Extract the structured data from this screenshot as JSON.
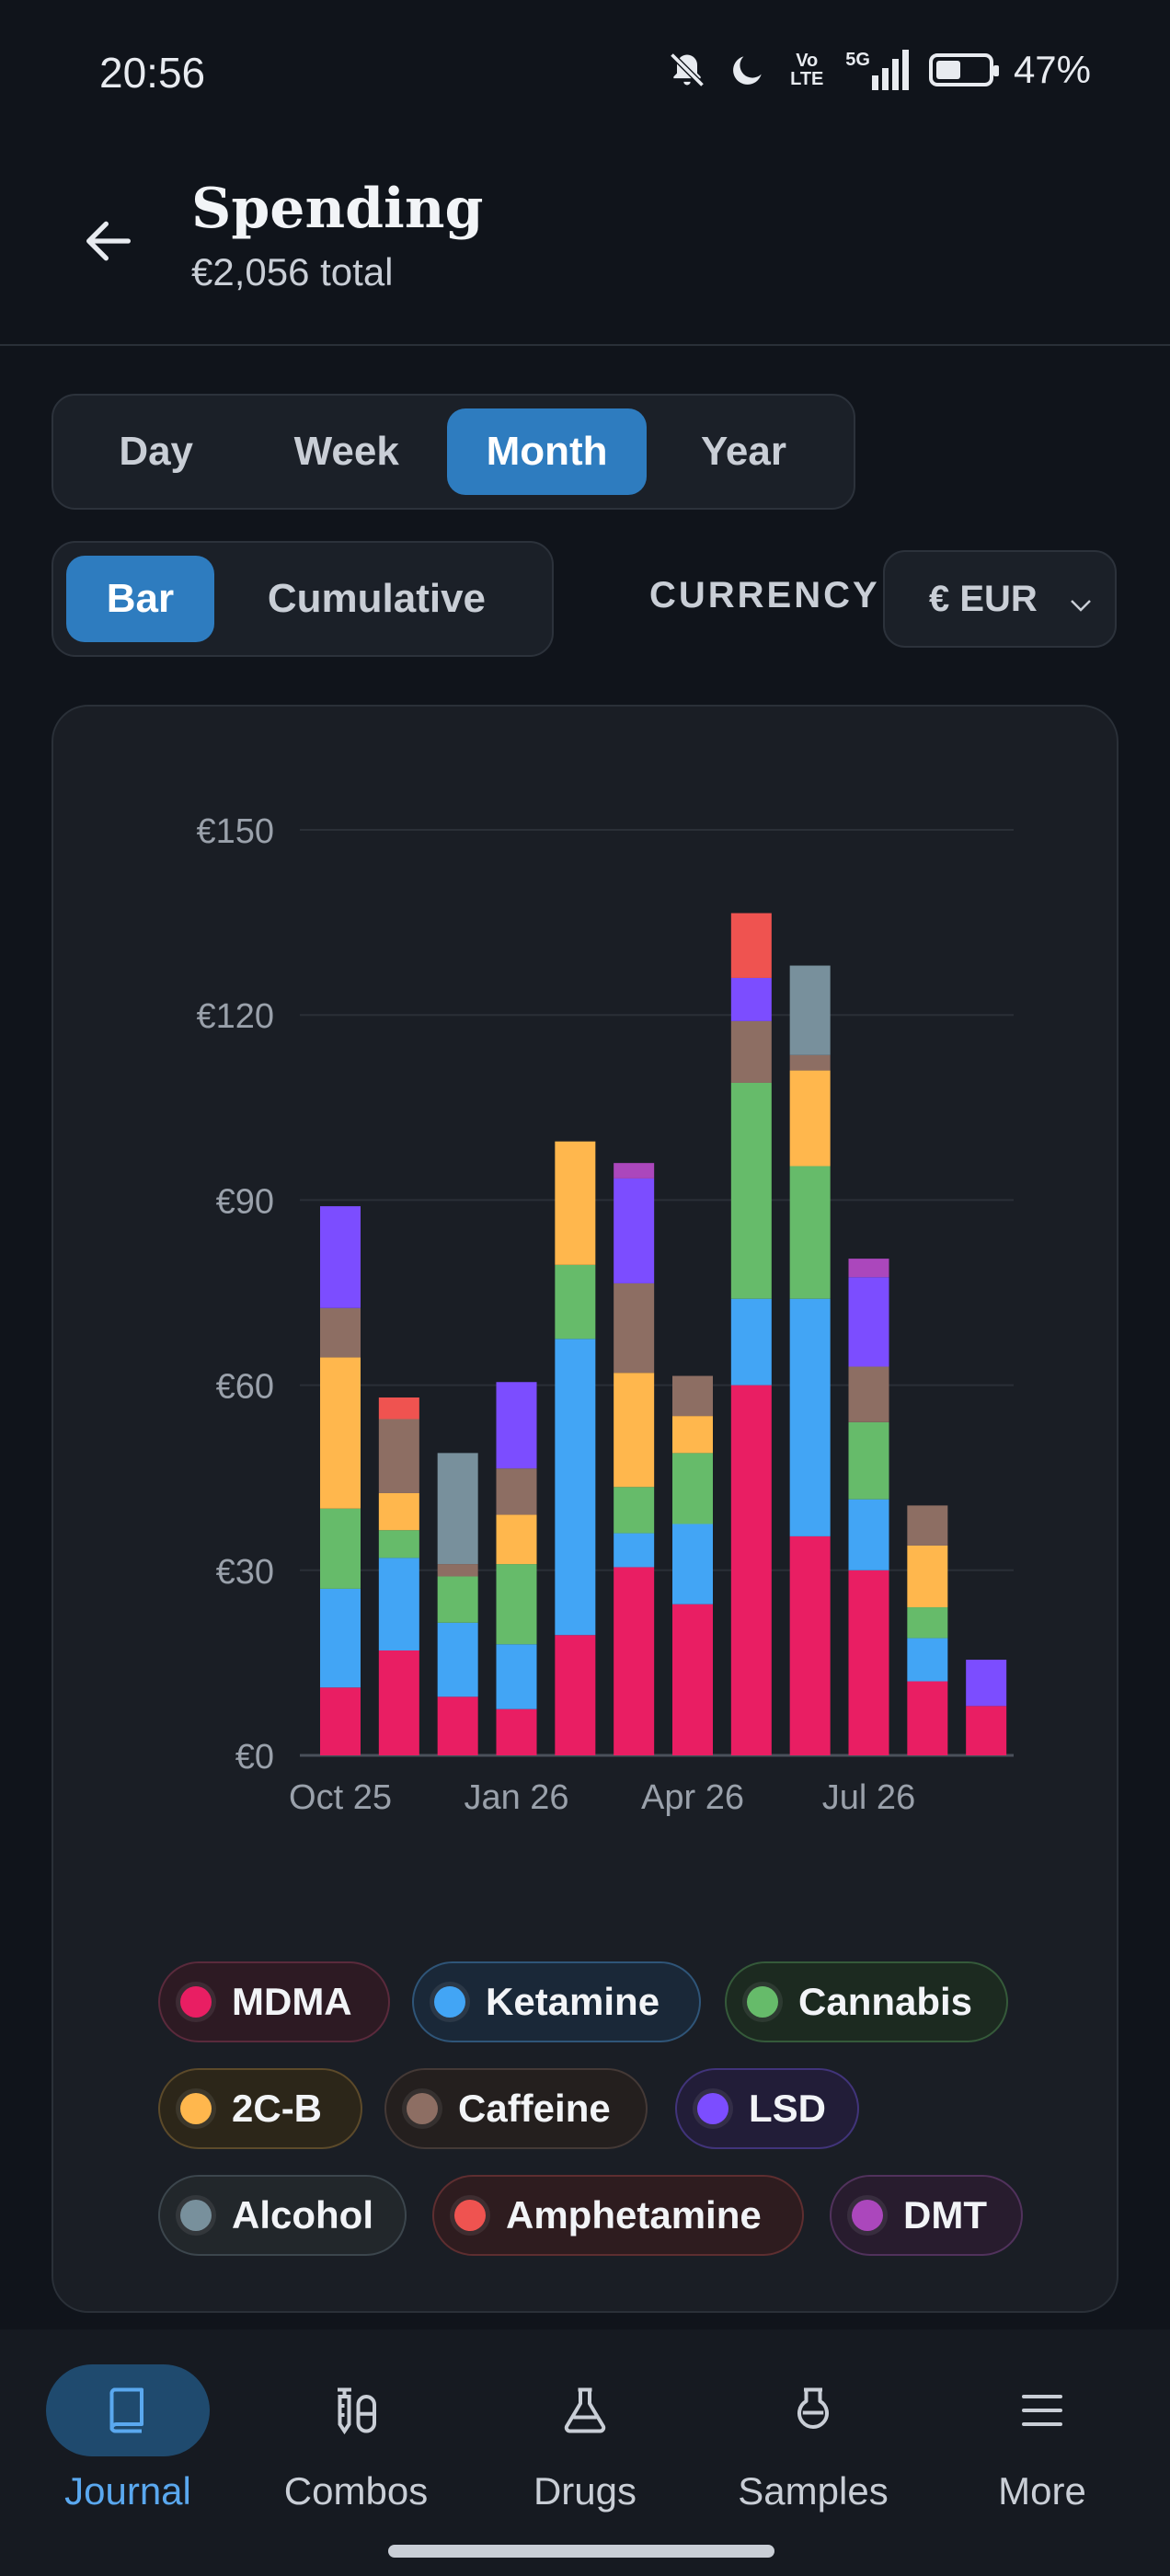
{
  "status_bar": {
    "time": "20:56",
    "volte": "Vo LTE",
    "network": "5G",
    "battery": "47%"
  },
  "header": {
    "title": "Spending",
    "subtitle": "€2,056 total"
  },
  "range_tabs": [
    {
      "label": "Day",
      "active": false
    },
    {
      "label": "Week",
      "active": false
    },
    {
      "label": "Month",
      "active": true
    },
    {
      "label": "Year",
      "active": false
    }
  ],
  "mode_tabs": [
    {
      "label": "Bar",
      "active": true
    },
    {
      "label": "Cumulative",
      "active": false
    }
  ],
  "currency": {
    "label": "CURRENCY",
    "selected": "€ EUR"
  },
  "chart_data": {
    "type": "bar",
    "stacked": true,
    "categories": [
      "Oct 25",
      "Nov 25",
      "Dec 25",
      "Jan 26",
      "Feb 26",
      "Mar 26",
      "Apr 26",
      "May 26",
      "Jun 26",
      "Jul 26",
      "Aug 26",
      "Sep 26"
    ],
    "x_tick_labels": [
      "Oct 25",
      "Jan 26",
      "Apr 26",
      "Jul 26"
    ],
    "y_tick_labels": [
      "€0",
      "€30",
      "€60",
      "€90",
      "€120",
      "€150"
    ],
    "ylim": [
      0,
      150
    ],
    "grid": true,
    "series": [
      {
        "name": "MDMA",
        "color": "#e91e63",
        "values": [
          11,
          17,
          9.5,
          7.5,
          19.5,
          30.5,
          24.5,
          60,
          35.5,
          30,
          12,
          8
        ]
      },
      {
        "name": "Ketamine",
        "color": "#42a5f5",
        "values": [
          16,
          15,
          12,
          10.5,
          48,
          5.5,
          13,
          14,
          38.5,
          11.5,
          7,
          0
        ]
      },
      {
        "name": "Cannabis",
        "color": "#66bb6a",
        "values": [
          13,
          4.5,
          7.5,
          13,
          12,
          7.5,
          11.5,
          35,
          21.5,
          12.5,
          5,
          0
        ]
      },
      {
        "name": "2C-B",
        "color": "#ffb74d",
        "values": [
          24.5,
          6,
          0,
          8,
          20,
          18.5,
          6,
          0,
          15.5,
          0,
          10,
          0
        ]
      },
      {
        "name": "Caffeine",
        "color": "#8d6e63",
        "values": [
          8,
          12,
          2,
          7.5,
          0,
          14.5,
          6.5,
          10,
          2.5,
          9,
          6.5,
          0
        ]
      },
      {
        "name": "LSD",
        "color": "#7c4dff",
        "values": [
          16.5,
          0,
          0,
          14,
          0,
          17,
          0,
          7,
          0,
          14.5,
          0,
          7.5
        ]
      },
      {
        "name": "Alcohol",
        "color": "#78909c",
        "values": [
          0,
          0,
          18,
          0,
          0,
          0,
          0,
          0,
          14.5,
          0,
          0,
          0
        ]
      },
      {
        "name": "Amphetamine",
        "color": "#ef5350",
        "values": [
          0,
          3.5,
          0,
          0,
          0,
          0,
          0,
          10.5,
          0,
          0,
          0,
          0
        ]
      },
      {
        "name": "DMT",
        "color": "#ab47bc",
        "values": [
          0,
          0,
          0,
          0,
          0,
          2.5,
          0,
          0,
          0,
          3,
          0,
          0
        ]
      }
    ]
  },
  "legend": [
    {
      "label": "MDMA",
      "color": "#e91e63"
    },
    {
      "label": "Ketamine",
      "color": "#42a5f5"
    },
    {
      "label": "Cannabis",
      "color": "#66bb6a"
    },
    {
      "label": "2C-B",
      "color": "#ffb74d"
    },
    {
      "label": "Caffeine",
      "color": "#8d6e63"
    },
    {
      "label": "LSD",
      "color": "#7c4dff"
    },
    {
      "label": "Alcohol",
      "color": "#78909c"
    },
    {
      "label": "Amphetamine",
      "color": "#ef5350"
    },
    {
      "label": "DMT",
      "color": "#ab47bc"
    }
  ],
  "bottom_nav": [
    {
      "label": "Journal",
      "icon": "book-icon",
      "active": true
    },
    {
      "label": "Combos",
      "icon": "syringe-pills-icon",
      "active": false
    },
    {
      "label": "Drugs",
      "icon": "flask-icon",
      "active": false
    },
    {
      "label": "Samples",
      "icon": "beaker-icon",
      "active": false
    },
    {
      "label": "More",
      "icon": "menu-icon",
      "active": false
    }
  ]
}
